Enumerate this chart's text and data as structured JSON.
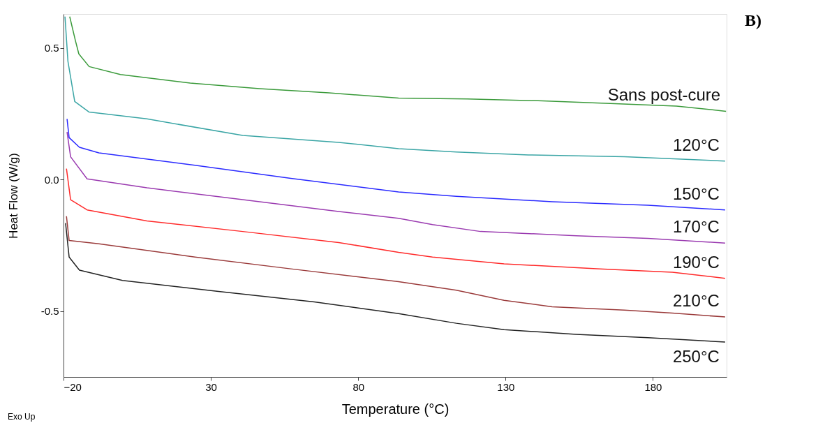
{
  "chart_data": {
    "type": "line",
    "xlabel": "Temperature (°C)",
    "ylabel": "Heat Flow (W/g)",
    "xlim": [
      -20,
      205
    ],
    "xticks": [
      -20,
      30,
      80,
      130,
      180
    ],
    "ylim": [
      -0.75,
      0.63
    ],
    "yticks": [
      {
        "value": -0.5,
        "label": "-0.5"
      },
      {
        "value": 0,
        "label": "0.0"
      },
      {
        "value": 0.5,
        "label": "0.5"
      }
    ],
    "grid": false,
    "marker": "none",
    "line_style": "solid",
    "annotations": [
      "B)",
      "Exo Up"
    ],
    "series": [
      {
        "name": "Sans post-cure",
        "color": "#3a9a3a",
        "x": [
          -17.9,
          -16,
          -14.8,
          -11.3,
          -0.7,
          23,
          46.5,
          70,
          93.7,
          117,
          141,
          164,
          188,
          204.8
        ],
        "values": [
          0.62,
          0.53,
          0.478,
          0.43,
          0.4,
          0.367,
          0.346,
          0.33,
          0.31,
          0.307,
          0.3,
          0.29,
          0.28,
          0.26
        ]
      },
      {
        "name": "120°C",
        "color": "#3aa5a5",
        "x": [
          -19.5,
          -18.5,
          -16.2,
          -11.3,
          8.3,
          40.8,
          73.4,
          93.7,
          113.3,
          137.8,
          170.3,
          204.5
        ],
        "values": [
          0.62,
          0.45,
          0.297,
          0.257,
          0.231,
          0.168,
          0.142,
          0.118,
          0.105,
          0.094,
          0.087,
          0.071
        ]
      },
      {
        "name": "150°C",
        "color": "#2a2aff",
        "x": [
          -18.8,
          -18.1,
          -14.6,
          -8,
          24.6,
          57.1,
          93.7,
          113.3,
          145.8,
          178.3,
          204.5
        ],
        "values": [
          0.231,
          0.16,
          0.123,
          0.102,
          0.055,
          0.005,
          -0.047,
          -0.063,
          -0.084,
          -0.097,
          -0.115
        ]
      },
      {
        "name": "170°C",
        "color": "#9a3ab0",
        "x": [
          -18.8,
          -17.6,
          -12,
          8.3,
          40.8,
          73.4,
          93.7,
          105.2,
          121.5,
          154,
          178.3,
          204.5
        ],
        "values": [
          0.181,
          0.087,
          0.003,
          -0.031,
          -0.076,
          -0.121,
          -0.147,
          -0.171,
          -0.197,
          -0.213,
          -0.223,
          -0.241
        ]
      },
      {
        "name": "190°C",
        "color": "#ff2a2a",
        "x": [
          -19,
          -17.6,
          -12,
          8.3,
          40.8,
          73.4,
          93.7,
          105.2,
          129.5,
          162,
          186.6,
          204.5
        ],
        "values": [
          0.042,
          -0.076,
          -0.115,
          -0.157,
          -0.197,
          -0.239,
          -0.276,
          -0.294,
          -0.32,
          -0.339,
          -0.352,
          -0.375
        ]
      },
      {
        "name": "210°C",
        "color": "#9a3a3a",
        "x": [
          -19,
          -18.1,
          -8,
          24.6,
          57.1,
          93.7,
          113.3,
          129.5,
          145.8,
          170.3,
          186.6,
          204.5
        ],
        "values": [
          -0.139,
          -0.231,
          -0.244,
          -0.294,
          -0.339,
          -0.388,
          -0.42,
          -0.459,
          -0.483,
          -0.496,
          -0.507,
          -0.522
        ]
      },
      {
        "name": "250°C",
        "color": "#222222",
        "x": [
          -19.3,
          -18.1,
          -14.6,
          0,
          32.6,
          65.1,
          93.7,
          113.3,
          129.5,
          154,
          178.3,
          204.5
        ],
        "values": [
          -0.165,
          -0.294,
          -0.344,
          -0.383,
          -0.425,
          -0.465,
          -0.509,
          -0.546,
          -0.57,
          -0.588,
          -0.601,
          -0.617
        ]
      }
    ]
  }
}
